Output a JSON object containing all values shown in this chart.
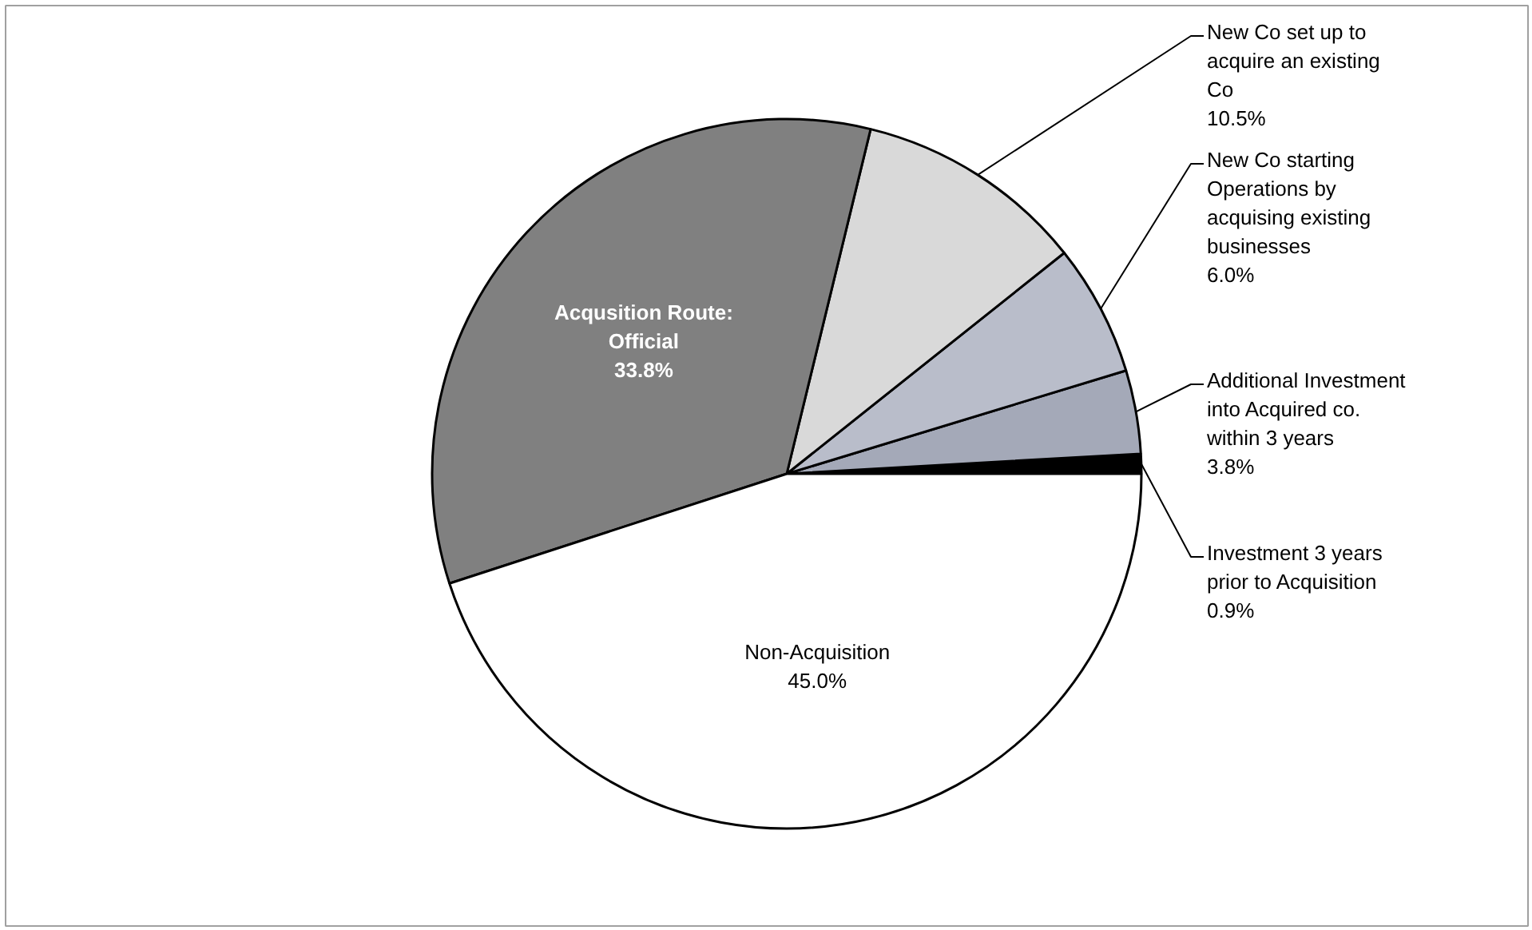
{
  "chart_data": {
    "type": "pie",
    "categories": [
      "Investment 3 years prior to Acquisition",
      "Additional Investment into Acquired co. within 3 years",
      "New Co starting Operations by acquising existing businesses",
      "New Co set up to acquire an existing Co",
      "Acqusition Route: Official",
      "Non-Acquisition"
    ],
    "values": [
      0.9,
      3.8,
      6.0,
      10.5,
      33.8,
      45.0
    ],
    "colors": [
      "#000000",
      "#a4a9b8",
      "#b9bdca",
      "#d9d9d9",
      "#808080",
      "#ffffff"
    ],
    "value_labels": [
      "0.9%",
      "3.8%",
      "6.0%",
      "10.5%",
      "33.8%",
      "45.0%"
    ]
  }
}
